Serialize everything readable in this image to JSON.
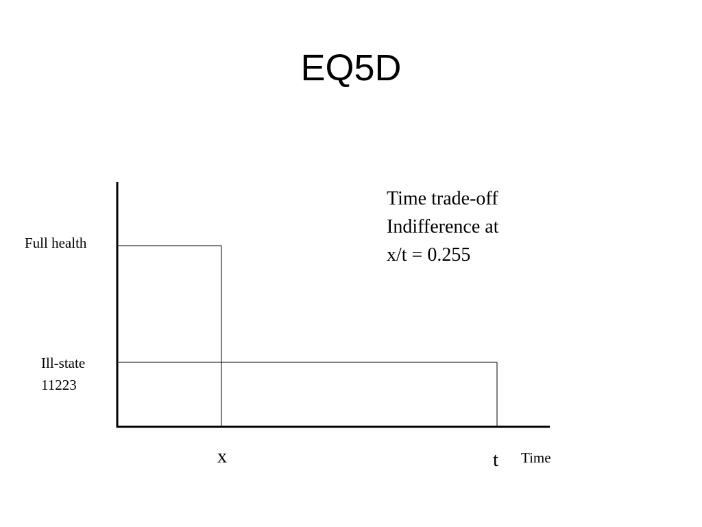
{
  "title": "EQ5D",
  "y_labels": {
    "full_health": "Full health",
    "ill_state": [
      "Ill-state",
      "11223"
    ]
  },
  "x_labels": {
    "x": "x",
    "t": "t",
    "axis": "Time"
  },
  "annotation": [
    "Time trade-off",
    "Indifference at",
    "x/t = 0.255"
  ]
}
